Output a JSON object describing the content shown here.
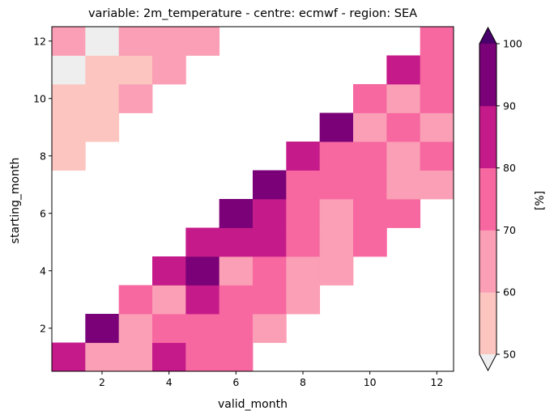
{
  "chart_data": {
    "type": "heatmap",
    "title": "variable: 2m_temperature - centre: ecmwf - region: SEA",
    "xlabel": "valid_month",
    "ylabel": "starting_month",
    "x_range": [
      0.5,
      12.5
    ],
    "y_range": [
      0.5,
      12.5
    ],
    "x_ticks": [
      2,
      4,
      6,
      8,
      10,
      12
    ],
    "y_ticks": [
      2,
      4,
      6,
      8,
      10,
      12
    ],
    "colorbar": {
      "label": "[%]",
      "bounds": [
        50,
        60,
        70,
        80,
        90,
        100
      ],
      "tick_labels": [
        "50",
        "60",
        "70",
        "80",
        "90",
        "100"
      ],
      "colors": [
        "#fcc5c0",
        "#fa9fb5",
        "#f768a1",
        "#c51b8a",
        "#7a0177"
      ],
      "under_color": "#eeeeee",
      "over_color": "#49006a",
      "extend": "both"
    },
    "rows": [
      {
        "starting_month": 1,
        "values": {
          "1": 85,
          "2": 65,
          "3": 65,
          "4": 85,
          "5": 75,
          "6": 75
        }
      },
      {
        "starting_month": 2,
        "values": {
          "2": 95,
          "3": 65,
          "4": 75,
          "5": 75,
          "6": 75,
          "7": 65
        }
      },
      {
        "starting_month": 3,
        "values": {
          "3": 75,
          "4": 65,
          "5": 85,
          "6": 75,
          "7": 75,
          "8": 65
        }
      },
      {
        "starting_month": 4,
        "values": {
          "4": 85,
          "5": 95,
          "6": 65,
          "7": 75,
          "8": 65,
          "9": 65
        }
      },
      {
        "starting_month": 5,
        "values": {
          "5": 85,
          "6": 85,
          "7": 85,
          "8": 75,
          "9": 65,
          "10": 75
        }
      },
      {
        "starting_month": 6,
        "values": {
          "6": 95,
          "7": 85,
          "8": 75,
          "9": 65,
          "10": 75,
          "11": 75
        }
      },
      {
        "starting_month": 7,
        "values": {
          "7": 95,
          "8": 75,
          "9": 75,
          "10": 75,
          "11": 65,
          "12": 65
        }
      },
      {
        "starting_month": 8,
        "values": {
          "1": 55,
          "8": 85,
          "9": 75,
          "10": 75,
          "11": 65,
          "12": 75
        }
      },
      {
        "starting_month": 9,
        "values": {
          "1": 55,
          "2": 55,
          "9": 95,
          "10": 65,
          "11": 75,
          "12": 65
        }
      },
      {
        "starting_month": 10,
        "values": {
          "1": 55,
          "2": 55,
          "3": 65,
          "10": 75,
          "11": 65,
          "12": 75
        }
      },
      {
        "starting_month": 11,
        "values": {
          "1": 45,
          "2": 55,
          "3": 55,
          "4": 65,
          "11": 85,
          "12": 75
        }
      },
      {
        "starting_month": 12,
        "values": {
          "1": 65,
          "2": 45,
          "3": 65,
          "4": 65,
          "5": 65,
          "12": 75
        }
      }
    ]
  }
}
